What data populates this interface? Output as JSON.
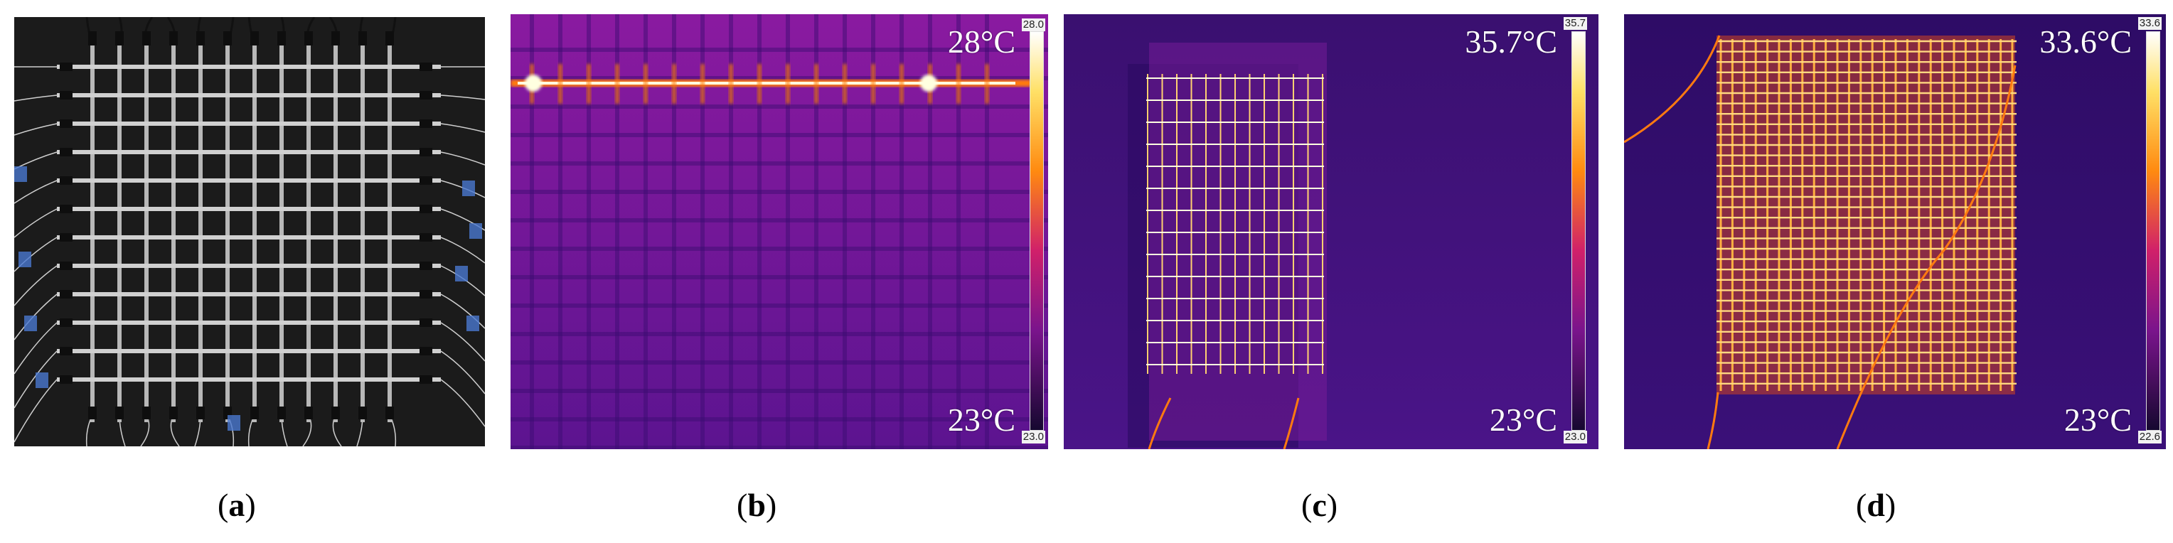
{
  "panels": {
    "a": {
      "caption_letter": "a"
    },
    "b": {
      "caption_letter": "b",
      "max_label": "28°C",
      "min_label": "23°C",
      "scale_max": "28.0",
      "scale_min": "23.0"
    },
    "c": {
      "caption_letter": "c",
      "max_label": "35.7°C",
      "min_label": "23°C",
      "scale_max": "35.7",
      "scale_min": "23.0"
    },
    "d": {
      "caption_letter": "d",
      "max_label": "33.6°C",
      "min_label": "23°C",
      "scale_max": "33.6",
      "scale_min": "22.6"
    }
  },
  "colors": {
    "thermal_low": "#2a0a5a",
    "thermal_mid": "#8a1aa0",
    "thermal_high": "#ff7a10",
    "thermal_peak": "#ffffe0",
    "photo_background": "#1b1b1b",
    "rod_metal": "#b8b8b8"
  }
}
